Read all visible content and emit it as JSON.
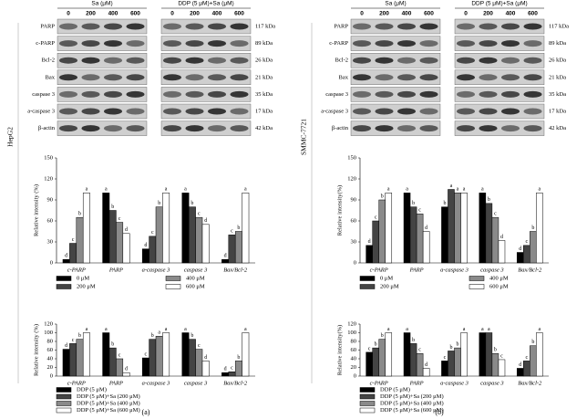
{
  "blots": {
    "groups": [
      "Sa (μM)",
      "DDP (5 μM)+Sa (μM)"
    ],
    "lanes": [
      "0",
      "200",
      "400",
      "600"
    ],
    "proteins": [
      {
        "name": "PARP",
        "size": "117 kDa"
      },
      {
        "name": "c-PARP",
        "size": "89 kDa"
      },
      {
        "name": "Bcl-2",
        "size": "26 kDa"
      },
      {
        "name": "Bax",
        "size": "21 kDa"
      },
      {
        "name": "caspase 3",
        "size": "35 kDa"
      },
      {
        "name": "a-caspase 3",
        "size": "17 kDa"
      },
      {
        "name": "β-actin",
        "size": "42 kDa"
      }
    ]
  },
  "panels": [
    {
      "label": "(a)",
      "cell_line": "HepG2"
    },
    {
      "label": "(b)",
      "cell_line": "SMMC-7721"
    }
  ],
  "chart_data": [
    {
      "type": "bar",
      "ylabel": "Relative intensity (%)",
      "categories": [
        "c-PARP",
        "PARP",
        "a-caspase 3",
        "caspase 3",
        "Bax/Bcl-2"
      ],
      "ylim": [
        0,
        150
      ],
      "yticks": [
        0,
        30,
        60,
        90,
        120,
        150
      ],
      "series": [
        {
          "name": "0 μM",
          "color": "#000000",
          "values": [
            5,
            100,
            20,
            100,
            5
          ],
          "letters": [
            "d",
            "a",
            "d",
            "a",
            "d"
          ]
        },
        {
          "name": "200 μM",
          "color": "#444444",
          "values": [
            28,
            75,
            38,
            80,
            40
          ],
          "letters": [
            "c",
            "b",
            "c",
            "b",
            "c"
          ]
        },
        {
          "name": "400 μM",
          "color": "#8a8a8a",
          "values": [
            65,
            58,
            80,
            65,
            45
          ],
          "letters": [
            "b",
            "c",
            "b",
            "c",
            "b"
          ]
        },
        {
          "name": "600 μM",
          "color": "#ffffff",
          "values": [
            100,
            42,
            100,
            55,
            100
          ],
          "letters": [
            "a",
            "d",
            "a",
            "d",
            "a"
          ]
        }
      ]
    },
    {
      "type": "bar",
      "ylabel": "Relative intensity (%)",
      "categories": [
        "c-PARP",
        "PARP",
        "a-caspase 3",
        "caspase 3",
        "Bax/Bcl-2"
      ],
      "ylim": [
        0,
        120
      ],
      "yticks": [
        0,
        20,
        40,
        60,
        80,
        100,
        120
      ],
      "series": [
        {
          "name": "DDP (5 μM)",
          "color": "#000000",
          "values": [
            62,
            100,
            42,
            100,
            8
          ],
          "letters": [
            "d",
            "a",
            "c",
            "a",
            "d"
          ]
        },
        {
          "name": "DDP (5 μM)+Sa (200 μM)",
          "color": "#444444",
          "values": [
            75,
            65,
            85,
            85,
            10
          ],
          "letters": [
            "c",
            "b",
            "b",
            "b",
            "c"
          ]
        },
        {
          "name": "DDP (5 μM)+Sa (400 μM)",
          "color": "#8a8a8a",
          "values": [
            85,
            40,
            92,
            62,
            35
          ],
          "letters": [
            "b",
            "c",
            "a",
            "c",
            "b"
          ]
        },
        {
          "name": "DDP (5 μM)+Sa (600 μM)",
          "color": "#ffffff",
          "values": [
            100,
            8,
            100,
            35,
            100
          ],
          "letters": [
            "a",
            "d",
            "a",
            "d",
            "a"
          ]
        }
      ]
    },
    {
      "type": "bar",
      "ylabel": "Relative intensity(%)",
      "categories": [
        "c-PARP",
        "PARP",
        "a-caspase 3",
        "caspase 3",
        "Bax/Bcl-2"
      ],
      "ylim": [
        0,
        150
      ],
      "yticks": [
        0,
        30,
        60,
        90,
        120,
        150
      ],
      "series": [
        {
          "name": "0 μM",
          "color": "#000000",
          "values": [
            25,
            100,
            80,
            100,
            15
          ],
          "letters": [
            "d",
            "a",
            "b",
            "a",
            "d"
          ]
        },
        {
          "name": "200 μM",
          "color": "#444444",
          "values": [
            60,
            80,
            105,
            85,
            25
          ],
          "letters": [
            "c",
            "b",
            "a",
            "b",
            "c"
          ]
        },
        {
          "name": "400 μM",
          "color": "#8a8a8a",
          "values": [
            90,
            70,
            100,
            65,
            45
          ],
          "letters": [
            "b",
            "c",
            "a",
            "c",
            "b"
          ]
        },
        {
          "name": "600 μM",
          "color": "#ffffff",
          "values": [
            100,
            45,
            100,
            32,
            100
          ],
          "letters": [
            "a",
            "d",
            "a",
            "d",
            "a"
          ]
        }
      ]
    },
    {
      "type": "bar",
      "ylabel": "Relative intensity(%)",
      "categories": [
        "c-PARP",
        "PARP",
        "a-caspase 3",
        "caspase 3",
        "Bax/Bcl-2"
      ],
      "ylim": [
        0,
        120
      ],
      "yticks": [
        0,
        20,
        40,
        60,
        80,
        100,
        120
      ],
      "series": [
        {
          "name": "DDP (5 μM)",
          "color": "#000000",
          "values": [
            55,
            100,
            35,
            100,
            18
          ],
          "letters": [
            "c",
            "a",
            "c",
            "a",
            "d"
          ]
        },
        {
          "name": "DDP (5 μM)+Sa (200 μM)",
          "color": "#444444",
          "values": [
            65,
            75,
            58,
            100,
            35
          ],
          "letters": [
            "b",
            "b",
            "b",
            "a",
            "c"
          ]
        },
        {
          "name": "DDP (5 μM)+Sa (400 μM)",
          "color": "#8a8a8a",
          "values": [
            85,
            52,
            65,
            52,
            70
          ],
          "letters": [
            "b",
            "c",
            "b",
            "b",
            "b"
          ]
        },
        {
          "name": "DDP (5 μM)+Sa (600 μM)",
          "color": "#ffffff",
          "values": [
            100,
            18,
            100,
            38,
            100
          ],
          "letters": [
            "a",
            "d",
            "a",
            "c",
            "a"
          ]
        }
      ]
    }
  ]
}
